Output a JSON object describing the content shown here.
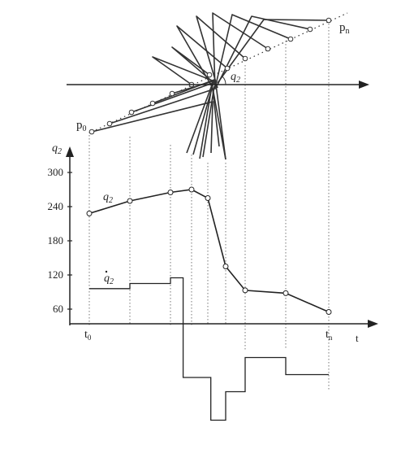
{
  "labels": {
    "p0": "p",
    "p0_sub": "0",
    "pn": "p",
    "pn_sub": "n",
    "q2_angle": "q",
    "q2_angle_sub": "2",
    "y_axis": "q",
    "y_axis_sub": "2",
    "q2_curve": "q",
    "q2_curve_sub": "2",
    "q2dot_curve": "q",
    "q2dot_sub": "2",
    "t0": "t",
    "t0_sub": "0",
    "tn": "t",
    "tn_sub": "n",
    "t_axis": "t"
  },
  "chart_data": {
    "type": "line",
    "x_axis_label": "t",
    "y_axis_label": "q2",
    "y_ticks": [
      "300",
      "240",
      "180",
      "120",
      "60"
    ],
    "series": [
      {
        "name": "q2",
        "points": [
          [
            0,
            228
          ],
          [
            1,
            250
          ],
          [
            2,
            265
          ],
          [
            3,
            270
          ],
          [
            3.4,
            255
          ],
          [
            4,
            135
          ],
          [
            4.5,
            93
          ],
          [
            5.5,
            88
          ],
          [
            6.5,
            55
          ]
        ]
      },
      {
        "name": "q2dot",
        "type": "step",
        "points": [
          [
            0,
            96
          ],
          [
            1,
            105
          ],
          [
            2,
            115
          ],
          [
            2.6,
            -60
          ],
          [
            3.5,
            -135
          ],
          [
            4,
            -85
          ],
          [
            4.5,
            -25
          ],
          [
            5.5,
            -55
          ],
          [
            6.5,
            -55
          ]
        ]
      }
    ]
  }
}
